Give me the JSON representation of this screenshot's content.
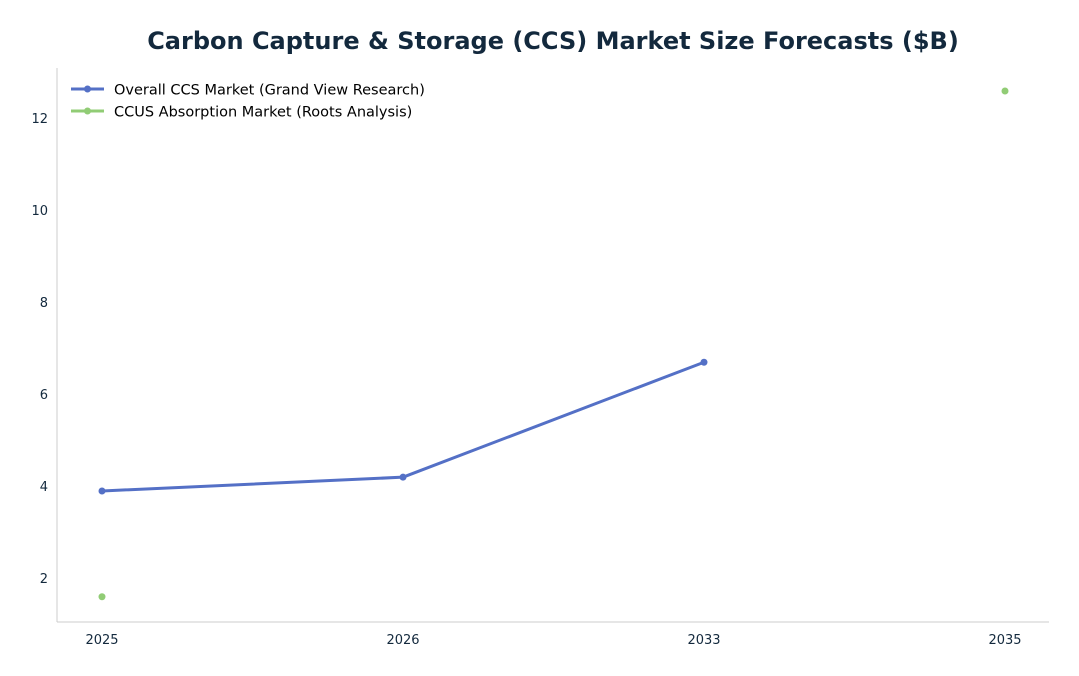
{
  "chart_data": {
    "type": "line",
    "title": "Carbon Capture & Storage (CCS) Market Size Forecasts ($B)",
    "xlabel": "",
    "ylabel": "",
    "categories": [
      "2025",
      "2026",
      "2033",
      "2035"
    ],
    "ylim": [
      1.05,
      13.1
    ],
    "yticks": [
      2,
      4,
      6,
      8,
      10,
      12
    ],
    "grid": false,
    "legend_position": "top-left",
    "series": [
      {
        "name": "Overall CCS Market (Grand View Research)",
        "color": "#5470c6",
        "values": [
          3.9,
          4.2,
          6.7,
          null
        ]
      },
      {
        "name": "CCUS Absorption Market (Roots Analysis)",
        "color": "#91cc75",
        "values": [
          1.6,
          null,
          null,
          12.6
        ]
      }
    ],
    "colors": {
      "title": "#13293d",
      "axis": "#cccccc",
      "tick_label": "#13293d"
    }
  }
}
